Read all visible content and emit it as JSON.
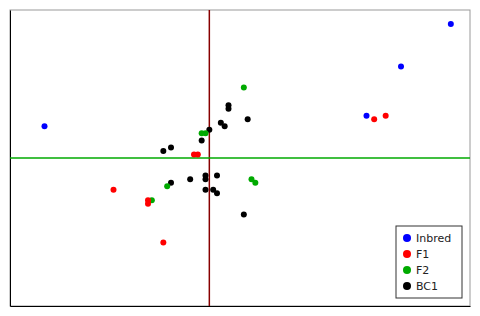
{
  "chart_data": {
    "type": "scatter",
    "xlim": [
      -0.5,
      0.7
    ],
    "ylim": [
      -0.42,
      0.42
    ],
    "tick_labels": false,
    "grid": false,
    "legend": "lower right",
    "series": [
      {
        "name": "Inbred",
        "color": "#0000ff",
        "x": [
          -0.41,
          0.43,
          0.52,
          0.65
        ],
        "values": [
          0.09,
          0.12,
          0.26,
          0.38
        ]
      },
      {
        "name": "F1",
        "color": "#ff0000",
        "x": [
          -0.23,
          -0.14,
          -0.14,
          -0.1,
          -0.02,
          -0.01,
          0.45,
          0.48
        ],
        "values": [
          -0.09,
          -0.13,
          -0.12,
          -0.24,
          0.01,
          0.01,
          0.11,
          0.12
        ]
      },
      {
        "name": "F2",
        "color": "#00aa00",
        "x": [
          -0.13,
          -0.09,
          0.0,
          0.01,
          0.11,
          0.13,
          0.14
        ],
        "values": [
          -0.12,
          -0.08,
          0.07,
          0.07,
          0.2,
          -0.06,
          -0.07
        ]
      },
      {
        "name": "BC1",
        "color": "#000000",
        "x": [
          -0.1,
          -0.08,
          -0.08,
          -0.03,
          0.0,
          0.01,
          0.01,
          0.01,
          0.02,
          0.03,
          0.04,
          0.04,
          0.05,
          0.06,
          0.07,
          0.07,
          0.11,
          0.12
        ],
        "values": [
          0.02,
          0.03,
          -0.07,
          -0.06,
          0.05,
          -0.05,
          -0.06,
          -0.09,
          0.08,
          -0.09,
          -0.05,
          -0.1,
          0.1,
          0.09,
          0.14,
          0.15,
          -0.16,
          0.11
        ]
      }
    ],
    "reference_lines": [
      {
        "axis": "x",
        "value": 0.02,
        "color": "#880000"
      },
      {
        "axis": "y",
        "value": 0.0,
        "color": "#00aa00"
      }
    ]
  }
}
